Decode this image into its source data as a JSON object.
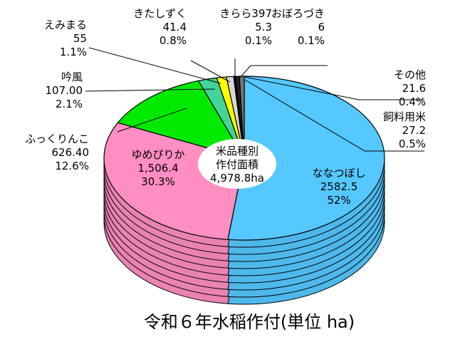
{
  "chart_data": {
    "type": "pie",
    "title": "令和６年水稲作付(単位 ha)",
    "center_label": [
      "米品種別",
      "作付面積",
      "4,978.8ha"
    ],
    "slices": [
      {
        "name": "ななつぼし",
        "value_label": "2582.5",
        "percent_label": "52%",
        "value": 2582.5,
        "percent": 52,
        "color": "#55c8ff"
      },
      {
        "name": "ゆめぴりか",
        "value_label": "1,506.4",
        "percent_label": "30.3%",
        "value": 1506.4,
        "percent": 30.3,
        "color": "#ff8ec2"
      },
      {
        "name": "ふっくりんこ",
        "value_label": "626.40",
        "percent_label": "12.6%",
        "value": 626.4,
        "percent": 12.6,
        "color": "#00ea00"
      },
      {
        "name": "吟風",
        "value_label": "107.00",
        "percent_label": "2.1%",
        "value": 107.0,
        "percent": 2.1,
        "color": "#44d49a"
      },
      {
        "name": "えみまる",
        "value_label": "55",
        "percent_label": "1.1%",
        "value": 55,
        "percent": 1.1,
        "color": "#ffff00"
      },
      {
        "name": "きたしずく",
        "value_label": "41.4",
        "percent_label": "0.8%",
        "value": 41.4,
        "percent": 0.8,
        "color": "#d8d8d8"
      },
      {
        "name": "きらら397",
        "value_label": "5.3",
        "percent_label": "0.1%",
        "value": 5.3,
        "percent": 0.1,
        "color": "#ff55a8"
      },
      {
        "name": "おぼろづき",
        "value_label": "6",
        "percent_label": "0.1%",
        "value": 6,
        "percent": 0.1,
        "color": "#c8a0ff"
      },
      {
        "name": "その他",
        "value_label": "21.6",
        "percent_label": "0.4%",
        "value": 21.6,
        "percent": 0.4,
        "color": "#222222"
      },
      {
        "name": "飼料用米",
        "value_label": "27.2",
        "percent_label": "0.5%",
        "value": 27.2,
        "percent": 0.5,
        "color": "#777777"
      }
    ]
  }
}
